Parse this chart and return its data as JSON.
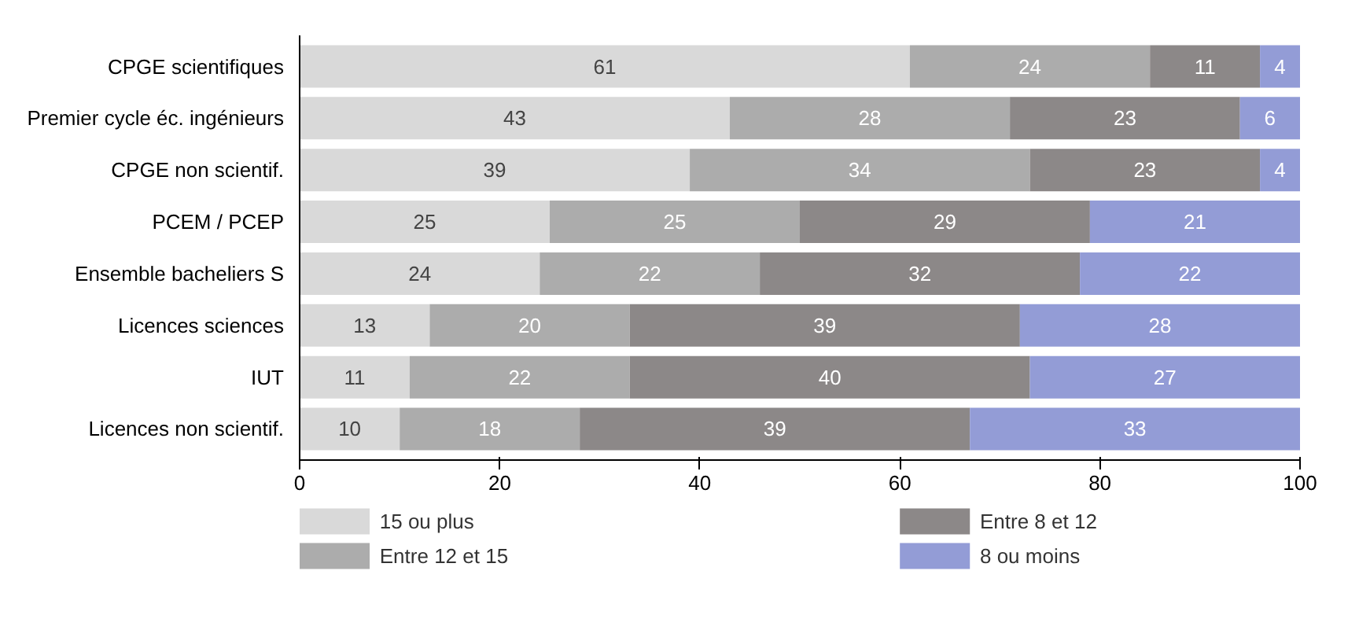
{
  "chart_data": {
    "type": "bar",
    "orientation": "horizontal",
    "stacked": true,
    "categories": [
      "CPGE scientifiques",
      "Premier cycle éc. ingénieurs",
      "CPGE non scientif.",
      "PCEM / PCEP",
      "Ensemble bacheliers S",
      "Licences sciences",
      "IUT",
      "Licences non scientif."
    ],
    "series": [
      {
        "name": "15 ou plus",
        "color": "#d9d9d9",
        "values": [
          61,
          43,
          39,
          25,
          24,
          13,
          11,
          10
        ]
      },
      {
        "name": "Entre 12 et 15",
        "color": "#acacac",
        "values": [
          24,
          28,
          34,
          25,
          22,
          20,
          22,
          18
        ]
      },
      {
        "name": "Entre 8 et 12",
        "color": "#8c8888",
        "values": [
          11,
          23,
          23,
          29,
          32,
          39,
          40,
          39
        ]
      },
      {
        "name": "8 ou moins",
        "color": "#939cd6",
        "values": [
          4,
          6,
          4,
          21,
          22,
          28,
          27,
          33
        ]
      }
    ],
    "xlim": [
      0,
      100
    ],
    "xticks": [
      0,
      20,
      40,
      60,
      80,
      100
    ],
    "data_labels": true,
    "legend": "bottom",
    "grid": false
  }
}
